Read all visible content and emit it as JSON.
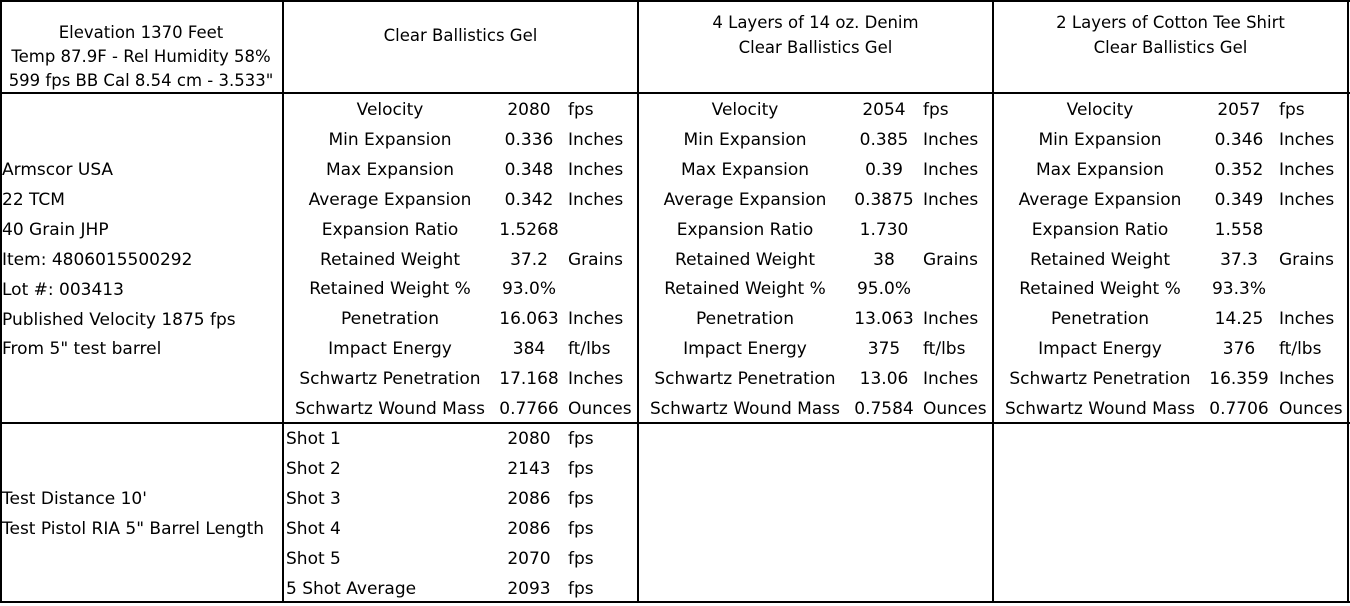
{
  "header": {
    "conditions": [
      "Elevation 1370 Feet",
      "Temp 87.9F - Rel Humidity 58%",
      "599 fps BB Cal 8.54 cm - 3.533\""
    ],
    "col1": [
      "Clear Ballistics Gel"
    ],
    "col2": [
      "4 Layers of 14 oz. Denim",
      "Clear Ballistics Gel"
    ],
    "col3": [
      "2 Layers of Cotton Tee Shirt",
      "Clear Ballistics Gel"
    ]
  },
  "ammo_info": [
    "Armscor USA",
    "22 TCM",
    "40 Grain JHP",
    "Item: 4806015500292",
    "Lot #: 003413",
    "Published Velocity 1875 fps",
    "From 5\" test barrel"
  ],
  "metric_labels": [
    "Velocity",
    "Min Expansion",
    "Max Expansion",
    "Average Expansion",
    "Expansion Ratio",
    "Retained Weight",
    "Retained Weight %",
    "Penetration",
    "Impact Energy",
    "Schwartz Penetration",
    "Schwartz Wound Mass"
  ],
  "results": [
    {
      "values": [
        "2080",
        "0.336",
        "0.348",
        "0.342",
        "1.5268",
        "37.2",
        "93.0%",
        "16.063",
        "384",
        "17.168",
        "0.7766"
      ],
      "units": [
        "fps",
        "Inches",
        "Inches",
        "Inches",
        "",
        "Grains",
        "",
        "Inches",
        "ft/lbs",
        "Inches",
        "Ounces"
      ]
    },
    {
      "values": [
        "2054",
        "0.385",
        "0.39",
        "0.3875",
        "1.730",
        "38",
        "95.0%",
        "13.063",
        "375",
        "13.06",
        "0.7584"
      ],
      "units": [
        "fps",
        "Inches",
        "Inches",
        "Inches",
        "",
        "Grains",
        "",
        "Inches",
        "ft/lbs",
        "Inches",
        "Ounces"
      ]
    },
    {
      "values": [
        "2057",
        "0.346",
        "0.352",
        "0.349",
        "1.558",
        "37.3",
        "93.3%",
        "14.25",
        "376",
        "16.359",
        "0.7706"
      ],
      "units": [
        "fps",
        "Inches",
        "Inches",
        "Inches",
        "",
        "Grains",
        "",
        "Inches",
        "ft/lbs",
        "Inches",
        "Ounces"
      ]
    }
  ],
  "test_info": [
    "Test Distance 10'",
    "Test Pistol RIA 5\" Barrel Length"
  ],
  "shots": [
    {
      "label": "Shot 1",
      "value": "2080",
      "unit": "fps"
    },
    {
      "label": "Shot 2",
      "value": "2143",
      "unit": "fps"
    },
    {
      "label": "Shot 3",
      "value": "2086",
      "unit": "fps"
    },
    {
      "label": "Shot 4",
      "value": "2086",
      "unit": "fps"
    },
    {
      "label": "Shot 5",
      "value": "2070",
      "unit": "fps"
    },
    {
      "label": "5 Shot Average",
      "value": "2093",
      "unit": "fps"
    }
  ]
}
